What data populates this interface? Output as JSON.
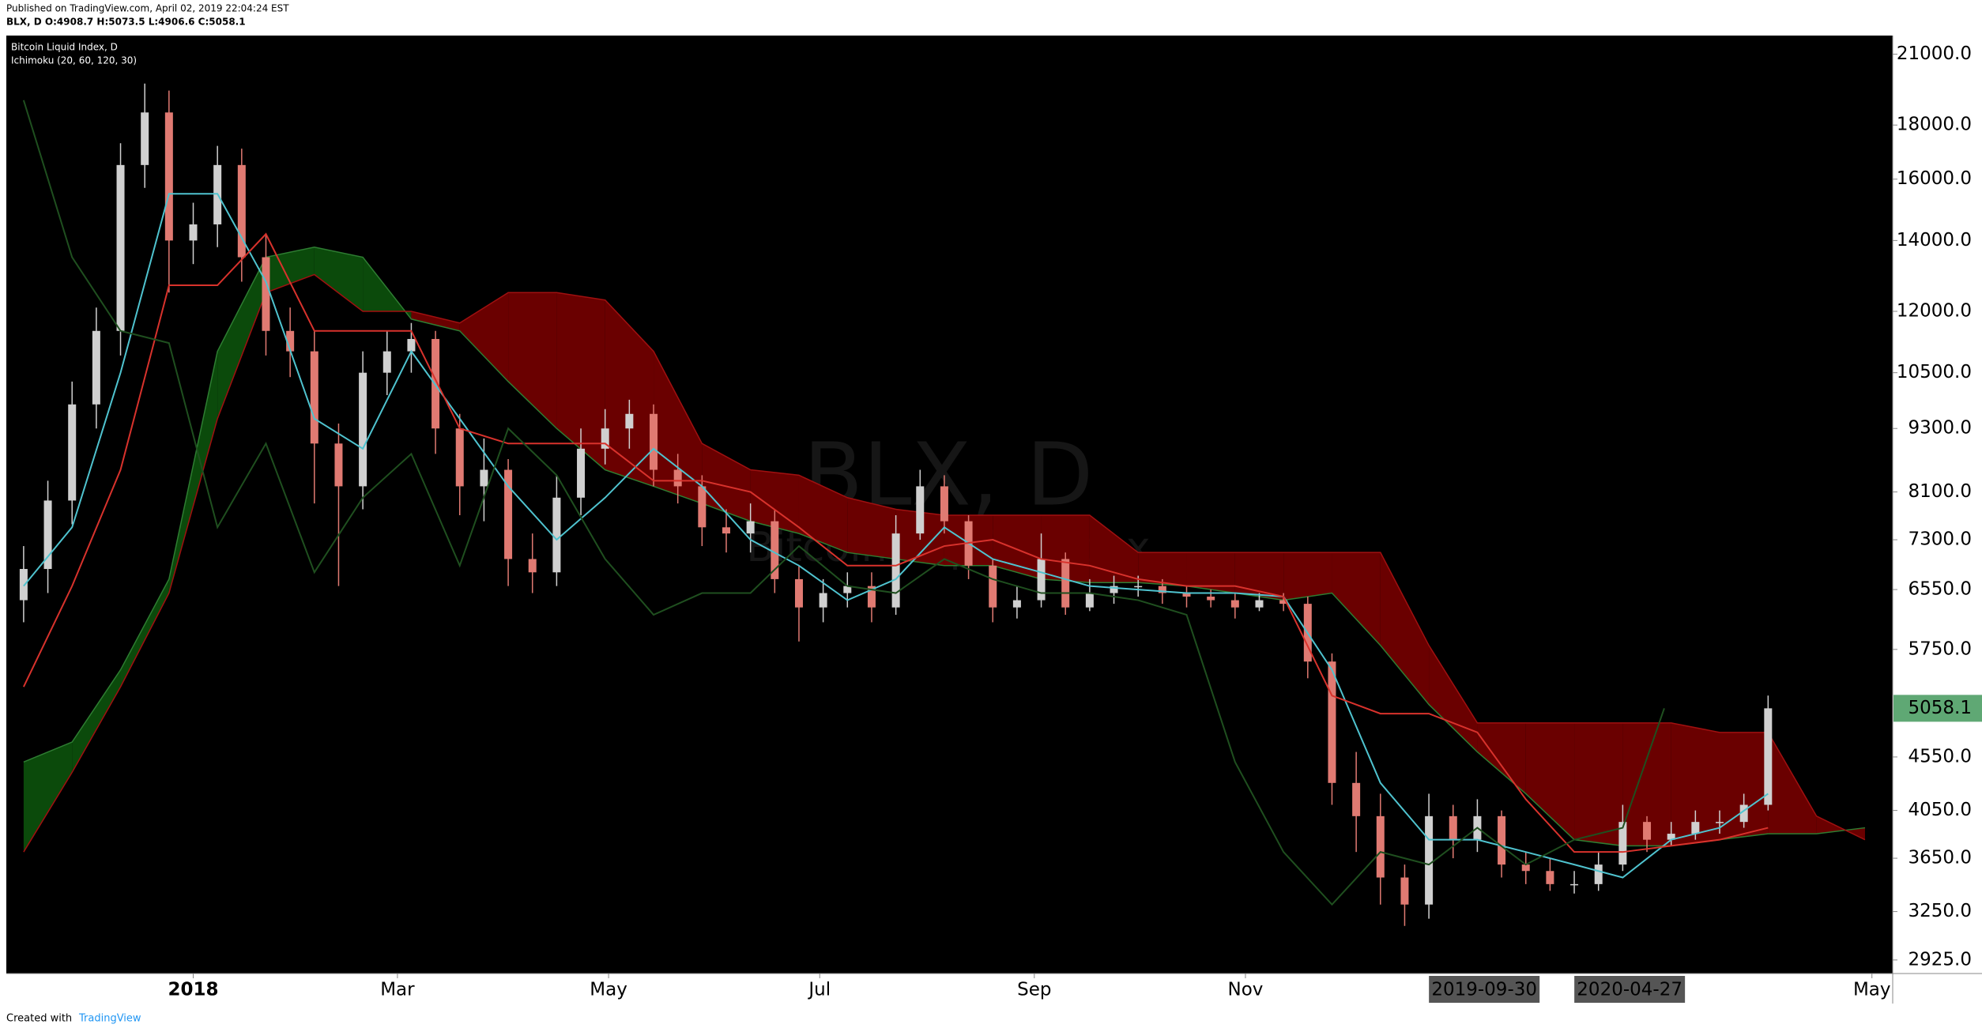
{
  "chart_data": {
    "type": "candlestick",
    "published": "Published on TradingView.com, April 02, 2019 22:04:24 EST",
    "ohlc_line": "BLX, D O:4908.7 H:5073.5 L:4906.6 C:5058.1",
    "title": "Bitcoin Liquid Index, D",
    "subtitle": "Ichimoku (20, 60, 120, 30)",
    "watermark": "BLX, D",
    "watermark_sub": "Bitcoin Liquid Index",
    "footer": "Created with",
    "footer_brand": "TradingView",
    "log_scale": true,
    "xlim": [
      -54,
      491
    ],
    "ylim": [
      2840,
      21870
    ],
    "xticks": [
      {
        "value": 0,
        "label": "2018"
      },
      {
        "value": 59,
        "label": "Mar"
      },
      {
        "value": 120,
        "label": "May"
      },
      {
        "value": 181,
        "label": "Jul"
      },
      {
        "value": 243,
        "label": "Sep"
      },
      {
        "value": 304,
        "label": "Nov"
      },
      {
        "value": 485,
        "label": "May"
      }
    ],
    "x_markers": [
      {
        "value": 373,
        "label": "2019-09-30"
      },
      {
        "value": 415,
        "label": "2020-04-27"
      }
    ],
    "yticks": [
      {
        "value": 21000,
        "label": "21000.0"
      },
      {
        "value": 18000,
        "label": "18000.0"
      },
      {
        "value": 16000,
        "label": "16000.0"
      },
      {
        "value": 14000,
        "label": "14000.0"
      },
      {
        "value": 12000,
        "label": "12000.0"
      },
      {
        "value": 10500,
        "label": "10500.0"
      },
      {
        "value": 9300,
        "label": "9300.0"
      },
      {
        "value": 8100,
        "label": "8100.0"
      },
      {
        "value": 7300,
        "label": "7300.0"
      },
      {
        "value": 6550,
        "label": "6550.0"
      },
      {
        "value": 5750,
        "label": "5750.0"
      },
      {
        "value": 4550,
        "label": "4550.0"
      },
      {
        "value": 4050,
        "label": "4050.0"
      },
      {
        "value": 3650,
        "label": "3650.0"
      },
      {
        "value": 3250,
        "label": "3250.0"
      },
      {
        "value": 2925,
        "label": "2925.0"
      }
    ],
    "last_price": 5058.1,
    "last_price_color": "#5fa874",
    "up_color": "#d0d0d0",
    "down_color": "#e07a72",
    "x": [
      -49,
      -42,
      -35,
      -28,
      -21,
      -14,
      -7,
      0,
      7,
      14,
      21,
      28,
      35,
      42,
      49,
      56,
      63,
      70,
      77,
      84,
      91,
      98,
      105,
      112,
      119,
      126,
      133,
      140,
      147,
      154,
      161,
      168,
      175,
      182,
      189,
      196,
      203,
      210,
      217,
      224,
      231,
      238,
      245,
      252,
      259,
      266,
      273,
      280,
      287,
      294,
      301,
      308,
      315,
      322,
      329,
      336,
      343,
      350,
      357,
      364,
      371,
      378,
      385,
      392,
      399,
      406,
      413,
      420,
      427,
      434,
      441,
      448,
      455
    ],
    "open": [
      6400,
      6850,
      7950,
      9800,
      11500,
      16500,
      18500,
      14000,
      14500,
      16500,
      13500,
      11500,
      11000,
      9000,
      8200,
      10500,
      11000,
      11300,
      9300,
      8200,
      8500,
      7000,
      6800,
      8000,
      8900,
      9300,
      9600,
      8500,
      8200,
      7500,
      7400,
      7600,
      6700,
      6300,
      6500,
      6600,
      6300,
      7400,
      8200,
      7600,
      6900,
      6300,
      6400,
      7000,
      6300,
      6500,
      6600,
      6600,
      6500,
      6450,
      6400,
      6300,
      6400,
      6350,
      5600,
      4300,
      4000,
      3500,
      3300,
      4000,
      3800,
      4000,
      3600,
      3550,
      3450,
      3450,
      3600,
      3950,
      3800,
      3850,
      3950,
      3950,
      4100
    ],
    "high": [
      7200,
      8300,
      10300,
      12100,
      17300,
      19700,
      19400,
      15200,
      17200,
      17100,
      14200,
      12100,
      11500,
      9400,
      11000,
      11500,
      11700,
      11500,
      9600,
      9100,
      8700,
      7400,
      8400,
      9300,
      9700,
      9900,
      9800,
      8800,
      8400,
      7800,
      7900,
      7800,
      6900,
      6700,
      6800,
      6800,
      7700,
      8500,
      8400,
      7700,
      7000,
      6600,
      7400,
      7100,
      6700,
      6750,
      6750,
      6700,
      6600,
      6550,
      6500,
      6500,
      6500,
      6450,
      5700,
      4600,
      4200,
      3600,
      4200,
      4100,
      4150,
      4050,
      3700,
      3650,
      3550,
      3700,
      4100,
      4000,
      3950,
      4050,
      4050,
      4200,
      5200
    ],
    "low": [
      6100,
      6500,
      7550,
      9300,
      10900,
      15700,
      12500,
      13300,
      13800,
      12800,
      10900,
      10400,
      7900,
      6600,
      7800,
      10000,
      10500,
      8800,
      7700,
      7600,
      6600,
      6500,
      6600,
      7700,
      8600,
      8900,
      8200,
      7900,
      7200,
      7100,
      7100,
      6500,
      5850,
      6100,
      6300,
      6100,
      6200,
      7300,
      7400,
      6700,
      6100,
      6150,
      6300,
      6200,
      6250,
      6350,
      6450,
      6350,
      6300,
      6300,
      6150,
      6250,
      6250,
      5400,
      4100,
      3700,
      3300,
      3150,
      3200,
      3650,
      3700,
      3500,
      3450,
      3400,
      3380,
      3400,
      3550,
      3700,
      3750,
      3800,
      3850,
      3900,
      4050
    ],
    "close": [
      6850,
      7950,
      9800,
      11500,
      16500,
      18500,
      14000,
      14500,
      16500,
      13500,
      11500,
      11000,
      9000,
      8200,
      10500,
      11000,
      11300,
      9300,
      8200,
      8500,
      7000,
      6800,
      8000,
      8900,
      9300,
      9600,
      8500,
      8200,
      7500,
      7400,
      7600,
      6700,
      6300,
      6500,
      6600,
      6300,
      7400,
      8200,
      7600,
      6900,
      6300,
      6400,
      7000,
      6300,
      6500,
      6600,
      6600,
      6500,
      6450,
      6400,
      6300,
      6400,
      6350,
      5600,
      4300,
      4000,
      3500,
      3300,
      4000,
      3800,
      4000,
      3600,
      3550,
      3450,
      3450,
      3600,
      3950,
      3800,
      3850,
      3950,
      3950,
      4100,
      5058.1
    ],
    "cloud": {
      "bull_color": "#0b4a0b",
      "bear_color": "#6a0000",
      "x": [
        -49,
        -35,
        -21,
        -7,
        7,
        21,
        35,
        49,
        63,
        77,
        91,
        105,
        119,
        133,
        147,
        161,
        175,
        189,
        203,
        217,
        231,
        245,
        259,
        273,
        287,
        301,
        315,
        329,
        343,
        357,
        371,
        385,
        399,
        413,
        427,
        441,
        455,
        469,
        483
      ],
      "span_a": [
        4500,
        4700,
        5500,
        6700,
        11000,
        13500,
        13800,
        13500,
        11800,
        11500,
        10300,
        9300,
        8500,
        8200,
        7900,
        7600,
        7400,
        7100,
        7000,
        6900,
        6900,
        6700,
        6650,
        6650,
        6600,
        6500,
        6400,
        6500,
        5800,
        5100,
        4600,
        4200,
        3800,
        3750,
        3750,
        3800,
        3850,
        3850,
        3900
      ],
      "span_b": [
        3700,
        4400,
        5300,
        6500,
        9500,
        12500,
        13000,
        12000,
        12000,
        11700,
        12500,
        12500,
        12300,
        11000,
        9000,
        8500,
        8400,
        8000,
        7800,
        7700,
        7700,
        7700,
        7700,
        7100,
        7100,
        7100,
        7100,
        7100,
        7100,
        5800,
        4900,
        4900,
        4900,
        4900,
        4900,
        4800,
        4800,
        4000,
        3800
      ]
    },
    "lines": [
      {
        "color": "#4fc3cf",
        "x": [
          -49,
          -35,
          -21,
          -7,
          7,
          21,
          35,
          49,
          63,
          77,
          91,
          105,
          119,
          133,
          147,
          161,
          175,
          189,
          203,
          217,
          231,
          245,
          259,
          273,
          287,
          301,
          315,
          329,
          343,
          357,
          371,
          385,
          399,
          413,
          427,
          441,
          455
        ],
        "values": [
          6600,
          7500,
          10500,
          15500,
          15500,
          12800,
          9500,
          8900,
          11000,
          9500,
          8200,
          7300,
          8000,
          8900,
          8200,
          7300,
          6900,
          6400,
          6700,
          7500,
          7000,
          6800,
          6600,
          6550,
          6500,
          6500,
          6450,
          5500,
          4300,
          3800,
          3800,
          3700,
          3600,
          3500,
          3800,
          3900,
          4200
        ]
      },
      {
        "color": "#d8322c",
        "x": [
          -49,
          -35,
          -21,
          -7,
          7,
          21,
          35,
          49,
          63,
          77,
          91,
          105,
          119,
          133,
          147,
          161,
          175,
          189,
          203,
          217,
          231,
          245,
          259,
          273,
          287,
          301,
          315,
          329,
          343,
          357,
          371,
          385,
          399,
          413,
          427,
          441,
          455
        ],
        "values": [
          5300,
          6600,
          8500,
          12700,
          12700,
          14200,
          11500,
          11500,
          11500,
          9300,
          9000,
          9000,
          9000,
          8300,
          8300,
          8100,
          7500,
          6900,
          6900,
          7200,
          7300,
          7000,
          6900,
          6700,
          6600,
          6600,
          6450,
          5200,
          5000,
          5000,
          4800,
          4150,
          3700,
          3700,
          3750,
          3800,
          3900
        ]
      },
      {
        "color": "#1f4f1f",
        "x": [
          -49,
          -35,
          -21,
          -7,
          7,
          21,
          35,
          49,
          63,
          77,
          91,
          105,
          119,
          133,
          147,
          161,
          175,
          189,
          203,
          217,
          231,
          245,
          259,
          273,
          287,
          301,
          315,
          329,
          343,
          357,
          371,
          385,
          399,
          413,
          425
        ],
        "values": [
          19000,
          13500,
          11500,
          11200,
          7500,
          9000,
          6800,
          8000,
          8800,
          6900,
          9300,
          8400,
          7000,
          6200,
          6500,
          6500,
          7200,
          6600,
          6500,
          7000,
          6700,
          6500,
          6500,
          6400,
          6200,
          4500,
          3700,
          3300,
          3700,
          3600,
          3900,
          3600,
          3800,
          3900,
          5058.1
        ]
      }
    ]
  }
}
